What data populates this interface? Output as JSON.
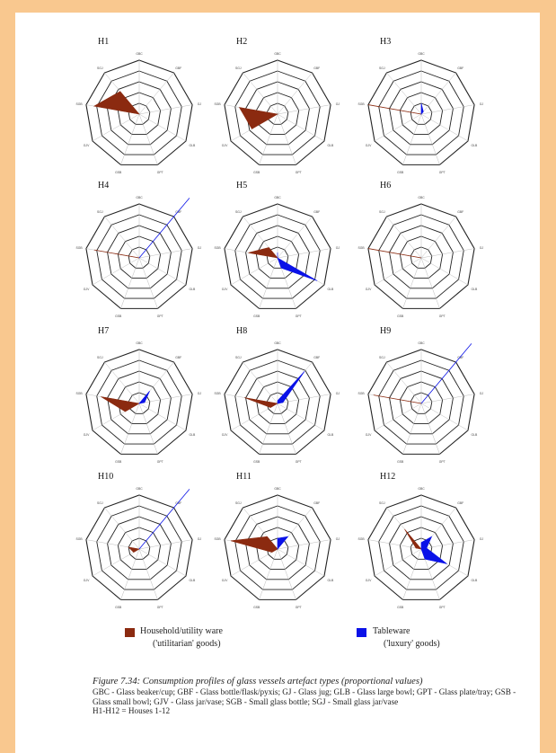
{
  "chart_data": {
    "type": "radar",
    "axes": [
      "GBC",
      "GBF",
      "GJ",
      "GLB",
      "GPT",
      "GSB",
      "GJV",
      "SGB",
      "SGJ"
    ],
    "rlim": [
      0,
      1
    ],
    "series_styles": [
      {
        "name": "Household/utility ware",
        "color": "#8b2a10"
      },
      {
        "name": "Tableware",
        "color": "#0a12e8"
      }
    ],
    "panels": [
      {
        "title": "H1",
        "household": [
          0,
          0,
          0,
          0,
          0,
          0,
          0,
          0.85,
          0.55
        ],
        "tableware": [
          0,
          0,
          0,
          0,
          0,
          0,
          0,
          0,
          0
        ]
      },
      {
        "title": "H2",
        "household": [
          0,
          0,
          0,
          0,
          0,
          0,
          0.55,
          0.72,
          0
        ],
        "tableware": [
          0,
          0,
          0,
          0,
          0,
          0,
          0,
          0,
          0
        ]
      },
      {
        "title": "H3",
        "household": [
          0,
          0,
          0,
          0,
          0,
          0,
          0,
          1.0,
          0
        ],
        "tableware": [
          0.2,
          0.06,
          0,
          0,
          0,
          0,
          0,
          0,
          0
        ]
      },
      {
        "title": "H4",
        "household": [
          0,
          0,
          0,
          0,
          0,
          0,
          0,
          0.85,
          0
        ],
        "tableware": [
          0,
          1.45,
          0,
          0,
          0,
          0,
          0,
          0,
          0
        ]
      },
      {
        "title": "H5",
        "household": [
          0,
          0,
          0,
          0,
          0,
          0,
          0,
          0.55,
          0.25
        ],
        "tableware": [
          0.1,
          0,
          0,
          0.85,
          0.2,
          0,
          0,
          0,
          0
        ]
      },
      {
        "title": "H6",
        "household": [
          0,
          0,
          0,
          0,
          0,
          0,
          0,
          1.0,
          0
        ],
        "tableware": [
          0,
          0,
          0,
          0,
          0,
          0,
          0,
          0,
          0
        ]
      },
      {
        "title": "H7",
        "household": [
          0,
          0,
          0,
          0,
          0,
          0,
          0.3,
          0.72,
          0
        ],
        "tableware": [
          0,
          0.3,
          0.1,
          0,
          0,
          0,
          0,
          0,
          0
        ]
      },
      {
        "title": "H8",
        "household": [
          0,
          0,
          0,
          0,
          0,
          0,
          0.15,
          0.62,
          0
        ],
        "tableware": [
          0.05,
          0.78,
          0.1,
          0,
          0,
          0,
          0,
          0,
          0
        ]
      },
      {
        "title": "H9",
        "household": [
          0,
          0,
          0,
          0,
          0,
          0,
          0,
          0.9,
          0
        ],
        "tableware": [
          0,
          1.45,
          0,
          0,
          0,
          0,
          0,
          0,
          0
        ]
      },
      {
        "title": "H10",
        "household": [
          0,
          0,
          0,
          0,
          0,
          0,
          0.12,
          0.2,
          0
        ],
        "tableware": [
          0,
          1.45,
          0,
          0,
          0,
          0,
          0,
          0,
          0
        ]
      },
      {
        "title": "H11",
        "household": [
          0,
          0,
          0,
          0,
          0,
          0,
          0.12,
          0.88,
          0.3
        ],
        "tableware": [
          0.2,
          0.3,
          0,
          0,
          0,
          0,
          0,
          0,
          0
        ]
      },
      {
        "title": "H12",
        "household": [
          0,
          0,
          0,
          0,
          0,
          0,
          0,
          0.1,
          0.48
        ],
        "tableware": [
          0.12,
          0.3,
          0.1,
          0.55,
          0.2,
          0,
          0,
          0,
          0
        ]
      }
    ]
  },
  "legend": {
    "household_line1": "Household/utility ware",
    "household_line2": "('utilitarian' goods)",
    "tableware_line1": "Tableware",
    "tableware_line2": "('luxury' goods)"
  },
  "caption": {
    "title": "Figure 7.34: Consumption profiles of glass vessels artefact types (proportional values)",
    "abbreviations": "GBC - Glass beaker/cup; GBF - Glass bottle/flask/pyxis; GJ - Glass jug; GLB - Glass large bowl; GPT - Glass plate/tray; GSB - Glass small bowl; GJV - Glass jar/vase; SGB - Small glass bottle; SGJ - Small glass jar/vase",
    "houses": "H1-H12 = Houses 1-12"
  }
}
